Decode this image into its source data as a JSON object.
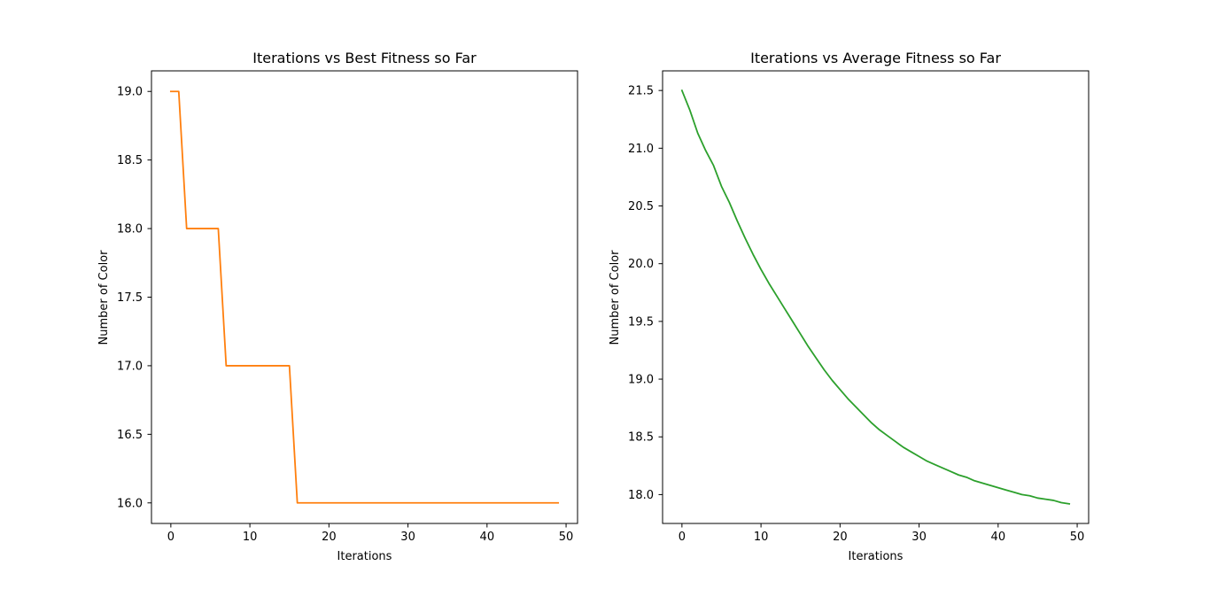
{
  "chart_data": [
    {
      "type": "line",
      "title": "Iterations vs Best Fitness so Far",
      "xlabel": "Iterations",
      "ylabel": "Number of Color",
      "xlim": [
        -2.45,
        51.45
      ],
      "ylim": [
        15.85,
        19.15
      ],
      "xticks": [
        0,
        10,
        20,
        30,
        40,
        50
      ],
      "yticks": [
        16.0,
        16.5,
        17.0,
        17.5,
        18.0,
        18.5,
        19.0
      ],
      "xtick_labels": [
        "0",
        "10",
        "20",
        "30",
        "40",
        "50"
      ],
      "ytick_labels": [
        "16.0",
        "16.5",
        "17.0",
        "17.5",
        "18.0",
        "18.5",
        "19.0"
      ],
      "grid": false,
      "legend": "none",
      "series": [
        {
          "color": "#ff7f0e",
          "x": [
            0,
            1,
            2,
            3,
            4,
            5,
            6,
            7,
            8,
            9,
            10,
            11,
            12,
            13,
            14,
            15,
            16,
            17,
            18,
            19,
            20,
            21,
            22,
            23,
            24,
            25,
            26,
            27,
            28,
            29,
            30,
            31,
            32,
            33,
            34,
            35,
            36,
            37,
            38,
            39,
            40,
            41,
            42,
            43,
            44,
            45,
            46,
            47,
            48,
            49
          ],
          "y": [
            19,
            19,
            18,
            18,
            18,
            18,
            18,
            17,
            17,
            17,
            17,
            17,
            17,
            17,
            17,
            17,
            16,
            16,
            16,
            16,
            16,
            16,
            16,
            16,
            16,
            16,
            16,
            16,
            16,
            16,
            16,
            16,
            16,
            16,
            16,
            16,
            16,
            16,
            16,
            16,
            16,
            16,
            16,
            16,
            16,
            16,
            16,
            16,
            16,
            16
          ]
        }
      ]
    },
    {
      "type": "line",
      "title": "Iterations vs Average Fitness so Far",
      "xlabel": "Iterations",
      "ylabel": "Number of Color",
      "xlim": [
        -2.45,
        51.45
      ],
      "ylim": [
        17.75,
        21.67
      ],
      "xticks": [
        0,
        10,
        20,
        30,
        40,
        50
      ],
      "yticks": [
        18.0,
        18.5,
        19.0,
        19.5,
        20.0,
        20.5,
        21.0,
        21.5
      ],
      "xtick_labels": [
        "0",
        "10",
        "20",
        "30",
        "40",
        "50"
      ],
      "ytick_labels": [
        "18.0",
        "18.5",
        "19.0",
        "19.5",
        "20.0",
        "20.5",
        "21.0",
        "21.5"
      ],
      "grid": false,
      "legend": "none",
      "series": [
        {
          "color": "#2ca02c",
          "x": [
            0,
            1,
            2,
            3,
            4,
            5,
            6,
            7,
            8,
            9,
            10,
            11,
            12,
            13,
            14,
            15,
            16,
            17,
            18,
            19,
            20,
            21,
            22,
            23,
            24,
            25,
            26,
            27,
            28,
            29,
            30,
            31,
            32,
            33,
            34,
            35,
            36,
            37,
            38,
            39,
            40,
            41,
            42,
            43,
            44,
            45,
            46,
            47,
            48,
            49
          ],
          "y": [
            21.5,
            21.33,
            21.13,
            20.98,
            20.85,
            20.67,
            20.53,
            20.37,
            20.22,
            20.08,
            19.95,
            19.83,
            19.72,
            19.61,
            19.5,
            19.39,
            19.28,
            19.18,
            19.08,
            18.99,
            18.91,
            18.83,
            18.76,
            18.69,
            18.62,
            18.56,
            18.51,
            18.46,
            18.41,
            18.37,
            18.33,
            18.29,
            18.26,
            18.23,
            18.2,
            18.17,
            18.15,
            18.12,
            18.1,
            18.08,
            18.06,
            18.04,
            18.02,
            18.0,
            17.99,
            17.97,
            17.96,
            17.95,
            17.93,
            17.92
          ]
        }
      ]
    }
  ]
}
